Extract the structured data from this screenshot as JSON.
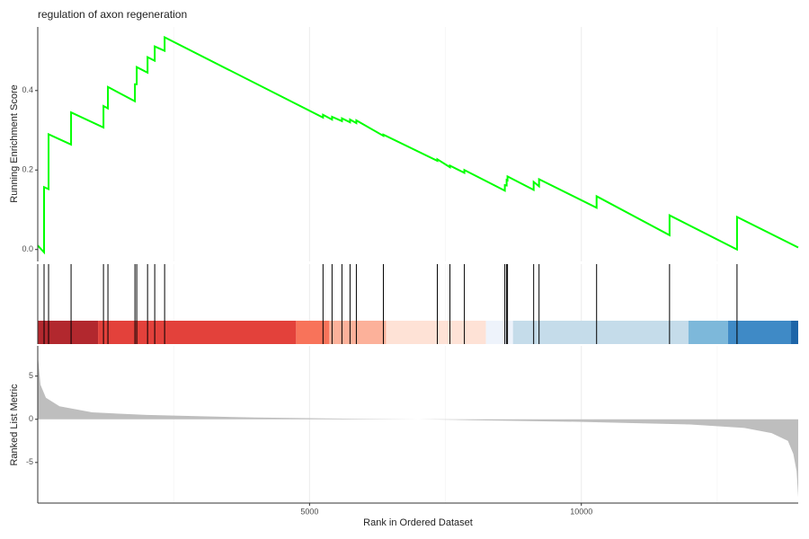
{
  "chart_data": [
    {
      "type": "line",
      "title": "regulation of axon regeneration",
      "ylabel": "Running Enrichment Score",
      "color": "#00ff00",
      "x": [
        0,
        116,
        116,
        199,
        199,
        613,
        613,
        1209,
        1209,
        1291,
        1291,
        1788,
        1788,
        1821,
        1821,
        2020,
        2020,
        2152,
        2152,
        2334,
        2334,
        5248,
        5248,
        5414,
        5414,
        5596,
        5596,
        5745,
        5745,
        5861,
        5861,
        6358,
        6358,
        7351,
        7351,
        7583,
        7583,
        7848,
        7848,
        8593,
        8593,
        8626,
        8626,
        8642,
        8642,
        9123,
        9123,
        9222,
        9222,
        10281,
        10281,
        11623,
        11623,
        12864,
        12864,
        13990
      ],
      "values": [
        0.01,
        -0.007,
        0.157,
        0.152,
        0.29,
        0.264,
        0.345,
        0.307,
        0.361,
        0.355,
        0.409,
        0.373,
        0.416,
        0.416,
        0.459,
        0.445,
        0.484,
        0.475,
        0.511,
        0.5,
        0.534,
        0.332,
        0.339,
        0.327,
        0.334,
        0.323,
        0.33,
        0.32,
        0.327,
        0.318,
        0.325,
        0.286,
        0.289,
        0.223,
        0.227,
        0.207,
        0.211,
        0.193,
        0.2,
        0.148,
        0.162,
        0.161,
        0.175,
        0.174,
        0.184,
        0.15,
        0.17,
        0.159,
        0.177,
        0.105,
        0.134,
        0.036,
        0.086,
        0,
        0.082,
        0.005
      ],
      "xlim": [
        0,
        13990
      ],
      "xticks": [
        5000,
        10000
      ],
      "ylim": [
        -0.03,
        0.56
      ],
      "yticks": [
        {
          "value": 0,
          "label": "0.0"
        },
        0.2,
        0.4
      ]
    },
    {
      "type": "barcode",
      "hits": [
        0,
        116,
        199,
        613,
        1209,
        1291,
        1788,
        1821,
        2020,
        2152,
        2334,
        5248,
        5414,
        5596,
        5745,
        5861,
        6358,
        7351,
        7583,
        7848,
        8593,
        8626,
        8642,
        9123,
        9222,
        10281,
        11623,
        12864
      ],
      "bands": [
        {
          "start": 0,
          "end": 1109,
          "color": "#b2282e"
        },
        {
          "start": 1109,
          "end": 4752,
          "color": "#e3413b"
        },
        {
          "start": 4752,
          "end": 5364,
          "color": "#f8735a"
        },
        {
          "start": 5364,
          "end": 6407,
          "color": "#fcb19a"
        },
        {
          "start": 6407,
          "end": 8245,
          "color": "#fee2d6"
        },
        {
          "start": 8245,
          "end": 8742,
          "color": "#eef3fb"
        },
        {
          "start": 8742,
          "end": 11970,
          "color": "#c5dcea"
        },
        {
          "start": 11970,
          "end": 12699,
          "color": "#7db8da"
        },
        {
          "start": 12699,
          "end": 13858,
          "color": "#3f8ac6"
        },
        {
          "start": 13858,
          "end": 13990,
          "color": "#1d65a8"
        }
      ],
      "xlim": [
        0,
        13990
      ],
      "xticks": [
        5000,
        10000
      ]
    },
    {
      "type": "area",
      "ylabel": "Ranked List Metric",
      "xlabel": "Rank in Ordered Dataset",
      "color": "#bebebe",
      "x": [
        0,
        50,
        150,
        400,
        1000,
        2000,
        4000,
        6000,
        7000,
        8000,
        10000,
        12000,
        13000,
        13500,
        13800,
        13900,
        13960,
        13990
      ],
      "values": [
        7.5,
        4,
        2.5,
        1.5,
        0.8,
        0.5,
        0.2,
        0.05,
        0,
        -0.1,
        -0.3,
        -0.6,
        -1.0,
        -1.6,
        -2.5,
        -4,
        -6,
        -9
      ],
      "xlim": [
        0,
        13990
      ],
      "xticks": [
        5000,
        10000
      ],
      "ylim": [
        -9.7,
        8.5
      ],
      "yticks": [
        -5,
        0,
        5
      ]
    }
  ]
}
